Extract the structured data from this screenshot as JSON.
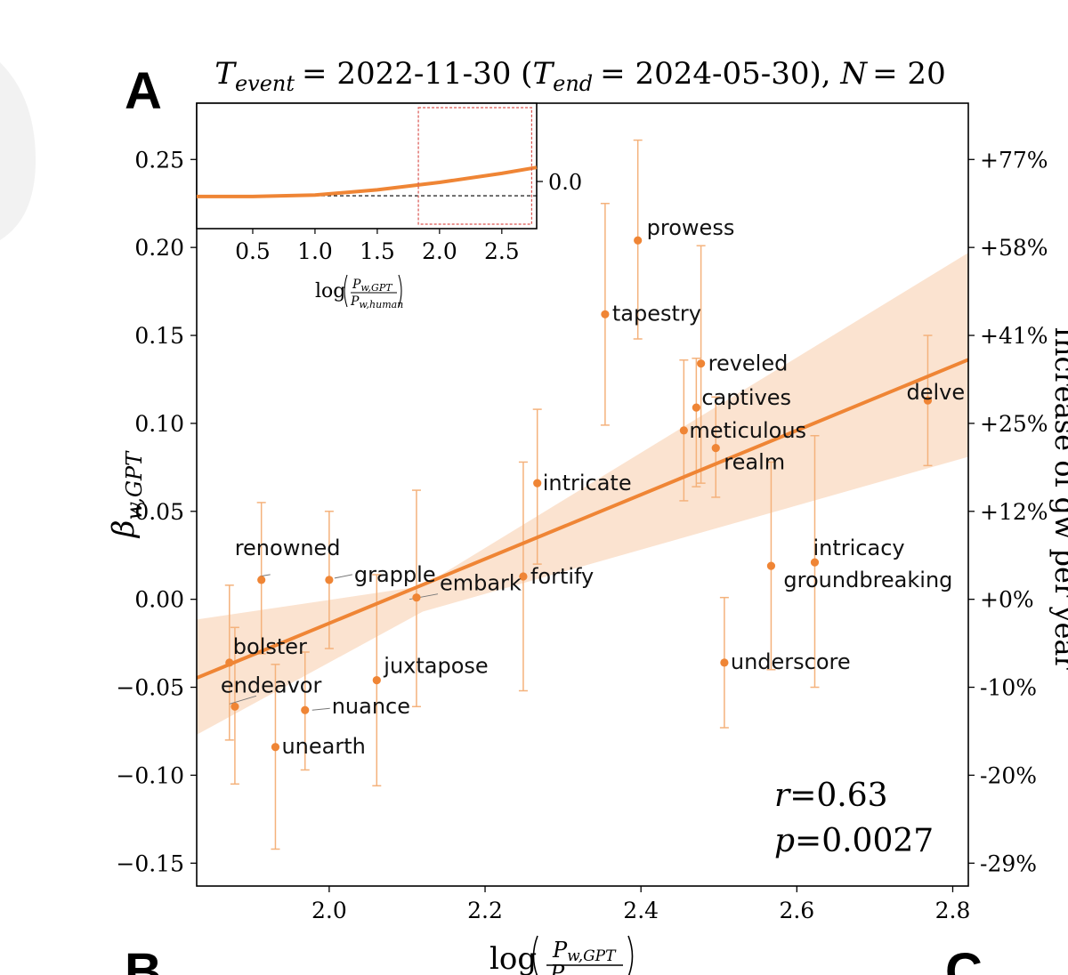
{
  "panels": {
    "main": "A",
    "lower_left": "B",
    "lower_right": "C"
  },
  "chart_data": [
    {
      "type": "scatter",
      "title": "T_event = 2022-11-30 (T_end = 2024-05-30), N = 20",
      "title_parts": {
        "t_event_label": "T",
        "t_event_sub": "event",
        "t_event_value": "= 2022-11-30 (",
        "t_end_label": "T",
        "t_end_sub": "end",
        "t_end_value": "= 2024-05-30), ",
        "n_label": "N",
        "n_value": "= 20"
      },
      "xlabel": "log(P_w,GPT / P_w,human)",
      "xlabel_parts": {
        "log": "log",
        "num": "P",
        "num_sub": "w,GPT",
        "den": "P"
      },
      "ylabel": "β_w,GPT",
      "ylabel_parts": {
        "beta": "β",
        "sub": "w,GPT"
      },
      "right_ylabel": "Increase of g_w per year",
      "right_ylabel_visible": "Increase of gw per year",
      "xlim": [
        1.83,
        2.82
      ],
      "ylim": [
        -0.163,
        0.282
      ],
      "xticks": [
        2.0,
        2.2,
        2.4,
        2.6,
        2.8
      ],
      "xtick_labels": [
        "2.0",
        "2.2",
        "2.4",
        "2.6",
        "2.8"
      ],
      "yticks": [
        -0.15,
        -0.1,
        -0.05,
        0.0,
        0.05,
        0.1,
        0.15,
        0.2,
        0.25
      ],
      "ytick_labels": [
        "−0.15",
        "−0.10",
        "−0.05",
        "0.00",
        "0.05",
        "0.10",
        "0.15",
        "0.20",
        "0.25"
      ],
      "right_yticks": [
        -0.15,
        -0.1,
        -0.05,
        0.0,
        0.05,
        0.1,
        0.15,
        0.2,
        0.25
      ],
      "right_ytick_labels": [
        "-29%",
        "-20%",
        "-10%",
        "+0%",
        "+12%",
        "+25%",
        "+41%",
        "+58%",
        "+77%"
      ],
      "fit_line": {
        "x": [
          1.83,
          2.82
        ],
        "y": [
          -0.0447,
          0.1362
        ]
      },
      "confidence_band": {
        "x": [
          1.83,
          2.12,
          2.82
        ],
        "lower": [
          -0.077,
          -0.007,
          0.081
        ],
        "upper": [
          -0.0115,
          0.0075,
          0.197
        ]
      },
      "points": [
        {
          "label": "prowess",
          "x": 2.396,
          "y": 0.204,
          "yerr_low": 0.148,
          "yerr_high": 0.261
        },
        {
          "label": "tapestry",
          "x": 2.354,
          "y": 0.162,
          "yerr_low": 0.099,
          "yerr_high": 0.225
        },
        {
          "label": "reveled",
          "x": 2.477,
          "y": 0.134,
          "yerr_low": 0.066,
          "yerr_high": 0.201
        },
        {
          "label": "captives",
          "x": 2.471,
          "y": 0.109,
          "yerr_low": 0.064,
          "yerr_high": 0.137
        },
        {
          "label": "meticulous",
          "x": 2.455,
          "y": 0.096,
          "yerr_low": 0.056,
          "yerr_high": 0.136
        },
        {
          "label": "realm",
          "x": 2.496,
          "y": 0.086,
          "yerr_low": 0.058,
          "yerr_high": 0.115
        },
        {
          "label": "delve",
          "x": 2.768,
          "y": 0.113,
          "yerr_low": 0.076,
          "yerr_high": 0.15
        },
        {
          "label": "intricate",
          "x": 2.267,
          "y": 0.066,
          "yerr_low": 0.02,
          "yerr_high": 0.108
        },
        {
          "label": "intricacy",
          "x": 2.623,
          "y": 0.021,
          "yerr_low": -0.05,
          "yerr_high": 0.093
        },
        {
          "label": "groundbreaking",
          "x": 2.567,
          "y": 0.019,
          "yerr_low": -0.04,
          "yerr_high": 0.078
        },
        {
          "label": "fortify",
          "x": 2.249,
          "y": 0.013,
          "yerr_low": -0.052,
          "yerr_high": 0.078
        },
        {
          "label": "embark",
          "x": 2.112,
          "y": 0.001,
          "yerr_low": -0.061,
          "yerr_high": 0.062
        },
        {
          "label": "grapple",
          "x": 2.0,
          "y": 0.011,
          "yerr_low": -0.028,
          "yerr_high": 0.05
        },
        {
          "label": "renowned",
          "x": 1.913,
          "y": 0.011,
          "yerr_low": -0.031,
          "yerr_high": 0.055
        },
        {
          "label": "bolster",
          "x": 1.872,
          "y": -0.036,
          "yerr_low": -0.08,
          "yerr_high": 0.008
        },
        {
          "label": "endeavor",
          "x": 1.879,
          "y": -0.061,
          "yerr_low": -0.105,
          "yerr_high": -0.016
        },
        {
          "label": "unearth",
          "x": 1.931,
          "y": -0.084,
          "yerr_low": -0.142,
          "yerr_high": -0.037
        },
        {
          "label": "nuance",
          "x": 1.969,
          "y": -0.063,
          "yerr_low": -0.097,
          "yerr_high": -0.03
        },
        {
          "label": "juxtapose",
          "x": 2.061,
          "y": -0.046,
          "yerr_low": -0.106,
          "yerr_high": 0.014
        },
        {
          "label": "underscore",
          "x": 2.507,
          "y": -0.036,
          "yerr_low": -0.073,
          "yerr_high": 0.001
        }
      ],
      "stats": {
        "r_label": "r",
        "r_value": "=0.63",
        "p_label": "p",
        "p_value": "=0.0027"
      },
      "colors": {
        "accent": "#ef8535",
        "band": "#fbe3d0",
        "errorbar": "#f4b27c",
        "axis": "#000000"
      }
    },
    {
      "type": "line",
      "inset": true,
      "xlabel": "log(P_w,GPT / P_w,human)",
      "xlabel_parts": {
        "log": "log",
        "num": "P",
        "num_sub": "w,GPT",
        "den": "P",
        "den_sub": "w,human"
      },
      "xlim": [
        0.05,
        2.78
      ],
      "ylim": [
        -0.22,
        0.62
      ],
      "xticks": [
        0.5,
        1.0,
        1.5,
        2.0,
        2.5
      ],
      "xtick_labels": [
        "0.5",
        "1.0",
        "1.5",
        "2.0",
        "2.5"
      ],
      "right_ytick_labels": [
        "0.0"
      ],
      "reference_line_y": 0.0,
      "curve": {
        "x": [
          0.05,
          0.5,
          1.0,
          1.5,
          2.0,
          2.5,
          2.78
        ],
        "y": [
          -0.005,
          -0.005,
          0.005,
          0.04,
          0.09,
          0.15,
          0.19
        ]
      },
      "highlight_region": {
        "x": [
          1.83,
          2.74
        ],
        "y": [
          -0.19,
          0.59
        ]
      },
      "colors": {
        "curve": "#ef8535",
        "region": "#d9534f"
      }
    }
  ]
}
